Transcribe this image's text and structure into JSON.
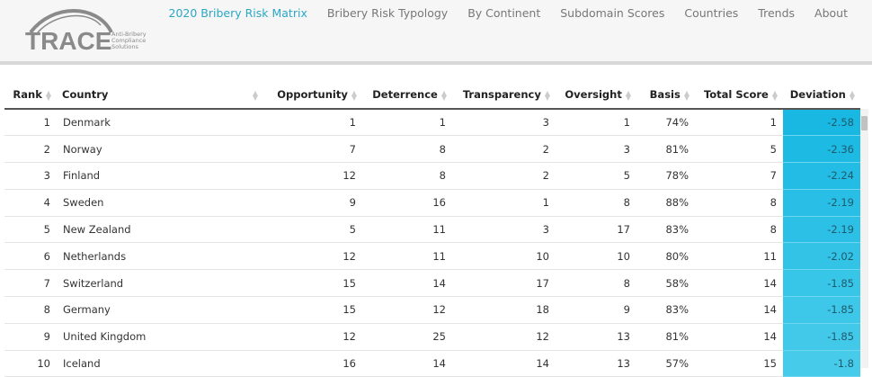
{
  "logo": {
    "text": "TRACE",
    "tagline": [
      "Anti-Bribery",
      "Compliance",
      "Solutions"
    ]
  },
  "nav": [
    {
      "label": "2020 Bribery Risk Matrix",
      "active": true
    },
    {
      "label": "Bribery Risk Typology"
    },
    {
      "label": "By Continent"
    },
    {
      "label": "Subdomain Scores"
    },
    {
      "label": "Countries"
    },
    {
      "label": "Trends"
    },
    {
      "label": "About"
    }
  ],
  "colors": {
    "accent": "#2aa8c4",
    "deviation_dark": "#18b8e3",
    "deviation_light": "#47cbea"
  },
  "table": {
    "columns": [
      "Rank",
      "Country",
      "Opportunity",
      "Deterrence",
      "Transparency",
      "Oversight",
      "Basis",
      "Total Score",
      "Deviation"
    ],
    "rows": [
      [
        "1",
        "Denmark",
        "1",
        "1",
        "3",
        "1",
        "74%",
        "1",
        "-2.58"
      ],
      [
        "2",
        "Norway",
        "7",
        "8",
        "2",
        "3",
        "81%",
        "5",
        "-2.36"
      ],
      [
        "3",
        "Finland",
        "12",
        "8",
        "2",
        "5",
        "78%",
        "7",
        "-2.24"
      ],
      [
        "4",
        "Sweden",
        "9",
        "16",
        "1",
        "8",
        "88%",
        "8",
        "-2.19"
      ],
      [
        "5",
        "New Zealand",
        "5",
        "11",
        "3",
        "17",
        "83%",
        "8",
        "-2.19"
      ],
      [
        "6",
        "Netherlands",
        "12",
        "11",
        "10",
        "10",
        "80%",
        "11",
        "-2.02"
      ],
      [
        "7",
        "Switzerland",
        "15",
        "14",
        "17",
        "8",
        "58%",
        "14",
        "-1.85"
      ],
      [
        "8",
        "Germany",
        "15",
        "12",
        "18",
        "9",
        "83%",
        "14",
        "-1.85"
      ],
      [
        "9",
        "United Kingdom",
        "12",
        "25",
        "12",
        "13",
        "81%",
        "14",
        "-1.85"
      ],
      [
        "10",
        "Iceland",
        "16",
        "14",
        "14",
        "13",
        "57%",
        "15",
        "-1.8"
      ]
    ]
  }
}
